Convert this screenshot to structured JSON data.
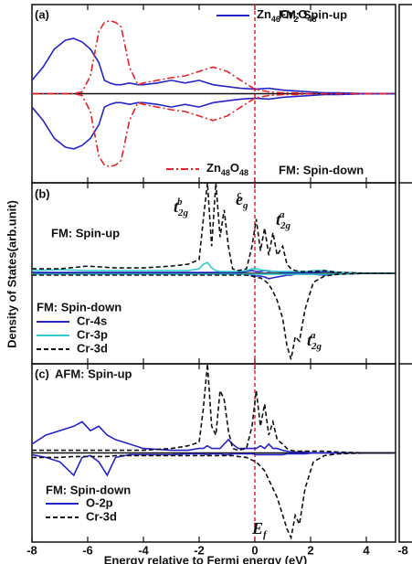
{
  "y_label": "Density of States(arb.unit)",
  "x_label": "Energy relative to Fermi energy (eV)",
  "right_panel": {
    "xticks": [
      -8
    ]
  },
  "chart_data": [
    {
      "type": "line",
      "panel_label": "(a)",
      "xlim": [
        -8,
        5.05
      ],
      "ylim": [
        -1,
        1
      ],
      "xticks": [
        -8,
        -6,
        -4,
        -2,
        0,
        2,
        4
      ],
      "vline": 0,
      "vline_color": "#e8202a",
      "annotations": [
        "FM: Spin-up",
        "FM: Spin-down"
      ],
      "x": [
        -8,
        -7.6,
        -7.2,
        -6.8,
        -6.5,
        -6.2,
        -5.9,
        -5.6,
        -5.4,
        -5.2,
        -5.0,
        -4.8,
        -4.5,
        -4.2,
        -4,
        -3.5,
        -3,
        -2.5,
        -2,
        -1.5,
        -1,
        -0.5,
        0,
        0.5,
        1,
        1.5,
        2,
        2.5,
        3,
        4,
        5
      ],
      "series": [
        {
          "name": "Zn46Cr2O48",
          "color": "#2424c8",
          "dash": "solid",
          "values": [
            0.15,
            0.3,
            0.5,
            0.6,
            0.62,
            0.58,
            0.5,
            0.35,
            0.15,
            0.12,
            0.1,
            0.1,
            0.12,
            0.1,
            0.1,
            0.12,
            0.15,
            0.12,
            0.15,
            0.1,
            0.08,
            0.06,
            0.05,
            0.06,
            0.04,
            0.03,
            0.02,
            0.01,
            0.01,
            0,
            0
          ],
          "values_down": [
            -0.15,
            -0.3,
            -0.5,
            -0.6,
            -0.62,
            -0.58,
            -0.5,
            -0.35,
            -0.15,
            -0.12,
            -0.1,
            -0.1,
            -0.12,
            -0.1,
            -0.1,
            -0.12,
            -0.15,
            -0.12,
            -0.15,
            -0.1,
            -0.08,
            -0.06,
            -0.05,
            -0.06,
            -0.04,
            -0.03,
            -0.02,
            -0.01,
            -0.01,
            0,
            0
          ]
        },
        {
          "name": "Zn48O48",
          "color": "#e8202a",
          "dash": "dashdot",
          "values": [
            0,
            0,
            0,
            0,
            0,
            0.02,
            0.2,
            0.7,
            0.8,
            0.82,
            0.8,
            0.75,
            0.3,
            0.1,
            0.12,
            0.15,
            0.18,
            0.2,
            0.25,
            0.3,
            0.25,
            0.15,
            0.05,
            0.02,
            0.01,
            0.01,
            0,
            0,
            0,
            0,
            0
          ],
          "values_down": [
            0,
            0,
            0,
            0,
            0,
            -0.02,
            -0.2,
            -0.7,
            -0.8,
            -0.82,
            -0.8,
            -0.75,
            -0.3,
            -0.1,
            -0.12,
            -0.15,
            -0.18,
            -0.2,
            -0.25,
            -0.3,
            -0.25,
            -0.15,
            -0.05,
            -0.02,
            -0.01,
            -0.01,
            0,
            0,
            0,
            0,
            0
          ]
        }
      ]
    },
    {
      "type": "line",
      "panel_label": "(b)",
      "xlim": [
        -8,
        5.05
      ],
      "ylim": [
        -1,
        1
      ],
      "xticks": [
        -8,
        -6,
        -4,
        -2,
        0,
        2,
        4
      ],
      "vline": 0,
      "vline_color": "#e8202a",
      "annotations": [
        "FM: Spin-up",
        "FM: Spin-down"
      ],
      "orbital_labels": [
        {
          "text": "t",
          "sub": "2g",
          "sup": "b"
        },
        {
          "text": "e",
          "sub": "g",
          "sup": "c"
        },
        {
          "text": "t",
          "sub": "2g",
          "sup": "a"
        },
        {
          "text": "t",
          "sub": "2g",
          "sup": "a"
        }
      ],
      "x": [
        -8,
        -7,
        -6,
        -5,
        -4,
        -3,
        -2.4,
        -2.0,
        -1.85,
        -1.7,
        -1.55,
        -1.4,
        -1.25,
        -1.1,
        -0.95,
        -0.8,
        -0.6,
        -0.3,
        -0.1,
        0.05,
        0.2,
        0.35,
        0.5,
        0.65,
        0.8,
        1.0,
        1.15,
        1.3,
        1.45,
        1.6,
        1.8,
        2.1,
        2.5,
        3,
        4,
        5
      ],
      "series": [
        {
          "name": "Cr-4s",
          "color": "#2424c8",
          "dash": "solid",
          "values": [
            0.01,
            0.01,
            0.01,
            0.01,
            0.01,
            0.01,
            0.01,
            0.01,
            0.01,
            0.01,
            0.01,
            0.01,
            0.01,
            0.01,
            0.01,
            0.01,
            0.01,
            0.02,
            0.03,
            0.02,
            0.02,
            0.03,
            0.02,
            0.02,
            0.02,
            0.01,
            0.01,
            0.01,
            0.01,
            0.01,
            0.01,
            0.01,
            0.02,
            0.01,
            0,
            0
          ],
          "values_down": [
            -0.01,
            -0.01,
            -0.01,
            -0.01,
            -0.01,
            -0.01,
            -0.01,
            -0.01,
            -0.01,
            -0.01,
            -0.01,
            -0.01,
            -0.01,
            -0.01,
            -0.01,
            -0.01,
            -0.01,
            -0.01,
            -0.02,
            -0.03,
            -0.03,
            -0.04,
            -0.06,
            -0.05,
            -0.04,
            -0.03,
            -0.02,
            -0.02,
            -0.01,
            -0.01,
            -0.01,
            -0.01,
            -0.02,
            -0.01,
            0,
            0
          ]
        },
        {
          "name": "Cr-3p",
          "color": "#35cccc",
          "dash": "solid",
          "values": [
            0.03,
            0.04,
            0.03,
            0.03,
            0.03,
            0.03,
            0.03,
            0.05,
            0.1,
            0.12,
            0.06,
            0.03,
            0.02,
            0.02,
            0.02,
            0.02,
            0.02,
            0.03,
            0.05,
            0.05,
            0.04,
            0.03,
            0.03,
            0.02,
            0.02,
            0.02,
            0.02,
            0.02,
            0.02,
            0.02,
            0.02,
            0.03,
            0.03,
            0.01,
            0,
            0
          ],
          "values_down": [
            -0.01,
            -0.01,
            -0.01,
            -0.01,
            -0.01,
            -0.01,
            -0.01,
            -0.01,
            -0.01,
            -0.01,
            -0.01,
            -0.01,
            -0.01,
            -0.01,
            -0.01,
            -0.01,
            -0.01,
            -0.01,
            -0.01,
            -0.01,
            -0.01,
            -0.01,
            -0.01,
            -0.01,
            -0.01,
            -0.01,
            -0.01,
            -0.01,
            -0.01,
            -0.01,
            -0.01,
            -0.01,
            -0.01,
            -0.01,
            0,
            0
          ]
        },
        {
          "name": "Cr-3d",
          "color": "#111111",
          "dash": "dash",
          "values": [
            0.05,
            0.05,
            0.08,
            0.06,
            0.06,
            0.08,
            0.1,
            0.15,
            0.6,
            1.0,
            0.3,
            1.0,
            0.4,
            0.7,
            0.3,
            0.05,
            0.03,
            0.05,
            0.3,
            0.6,
            0.25,
            0.5,
            0.2,
            0.45,
            0.2,
            0.3,
            0.1,
            0.05,
            0.03,
            0.02,
            0.02,
            0.02,
            0.03,
            0.01,
            0,
            0
          ],
          "values_down": [
            -0.02,
            -0.02,
            -0.02,
            -0.02,
            -0.02,
            -0.02,
            -0.02,
            -0.02,
            -0.02,
            -0.02,
            -0.02,
            -0.02,
            -0.02,
            -0.02,
            -0.02,
            -0.02,
            -0.02,
            -0.02,
            -0.03,
            -0.05,
            -0.05,
            -0.08,
            -0.12,
            -0.2,
            -0.3,
            -0.5,
            -0.8,
            -0.95,
            -0.7,
            -0.75,
            -0.4,
            -0.1,
            -0.03,
            -0.01,
            0,
            0
          ]
        }
      ]
    },
    {
      "type": "line",
      "panel_label": "(c)",
      "xlim": [
        -8,
        5.05
      ],
      "ylim": [
        -1,
        1
      ],
      "xticks": [
        -8,
        -6,
        -4,
        -2,
        0,
        2,
        4
      ],
      "vline": 0,
      "vline_color": "#e8202a",
      "annotations": [
        "AFM: Spin-up",
        "FM: Spin-down"
      ],
      "vline_label": {
        "text": "E",
        "sub": "f"
      },
      "x": [
        -8,
        -7.5,
        -7,
        -6.5,
        -6.2,
        -5.9,
        -5.6,
        -5.3,
        -5,
        -4.5,
        -4,
        -3,
        -2.4,
        -2.0,
        -1.85,
        -1.7,
        -1.55,
        -1.4,
        -1.25,
        -1.1,
        -0.95,
        -0.8,
        -0.6,
        -0.3,
        -0.1,
        0.05,
        0.2,
        0.35,
        0.5,
        0.65,
        0.8,
        1.0,
        1.15,
        1.3,
        1.45,
        1.6,
        1.8,
        2.1,
        2.5,
        3,
        4,
        5
      ],
      "series": [
        {
          "name": "O-2p",
          "color": "#2424c8",
          "dash": "solid",
          "values": [
            0.1,
            0.2,
            0.25,
            0.3,
            0.35,
            0.25,
            0.3,
            0.2,
            0.15,
            0.1,
            0.05,
            0.03,
            0.03,
            0.05,
            0.05,
            0.08,
            0.05,
            0.05,
            0.05,
            0.1,
            0.15,
            0.1,
            0.05,
            0.05,
            0.05,
            0.05,
            0.08,
            0.05,
            0.1,
            0.05,
            0.05,
            0.03,
            0.02,
            0.01,
            0.01,
            0.01,
            0.01,
            0,
            0,
            0,
            0,
            0
          ],
          "values_down": [
            -0.02,
            -0.05,
            -0.1,
            -0.25,
            -0.05,
            -0.03,
            -0.1,
            -0.25,
            -0.05,
            -0.02,
            -0.02,
            -0.02,
            -0.01,
            -0.01,
            -0.01,
            -0.02,
            -0.01,
            -0.01,
            -0.01,
            -0.02,
            -0.02,
            -0.01,
            -0.01,
            -0.01,
            -0.01,
            -0.02,
            -0.02,
            -0.02,
            -0.02,
            -0.02,
            -0.02,
            -0.02,
            -0.01,
            -0.01,
            -0.01,
            -0.01,
            -0.01,
            0,
            0,
            0,
            0,
            0
          ]
        },
        {
          "name": "Cr-3d",
          "color": "#111111",
          "dash": "dash",
          "values": [
            0.03,
            0.03,
            0.03,
            0.03,
            0.03,
            0.03,
            0.03,
            0.03,
            0.03,
            0.03,
            0.03,
            0.05,
            0.08,
            0.12,
            0.5,
            1.0,
            0.3,
            0.2,
            0.7,
            0.6,
            0.25,
            0.05,
            0.03,
            0.05,
            0.3,
            0.7,
            0.3,
            0.55,
            0.2,
            0.35,
            0.15,
            0.1,
            0.05,
            0.03,
            0.02,
            0.02,
            0.02,
            0.02,
            0.02,
            0.01,
            0,
            0
          ],
          "values_down": [
            -0.05,
            -0.05,
            -0.05,
            -0.04,
            -0.04,
            -0.04,
            -0.04,
            -0.04,
            -0.03,
            -0.03,
            -0.03,
            -0.03,
            -0.03,
            -0.03,
            -0.03,
            -0.03,
            -0.03,
            -0.03,
            -0.03,
            -0.03,
            -0.03,
            -0.03,
            -0.04,
            -0.05,
            -0.08,
            -0.1,
            -0.15,
            -0.2,
            -0.3,
            -0.4,
            -0.5,
            -0.7,
            -0.85,
            -0.95,
            -0.7,
            -0.8,
            -0.4,
            -0.1,
            -0.03,
            -0.01,
            0,
            0
          ]
        }
      ]
    }
  ]
}
